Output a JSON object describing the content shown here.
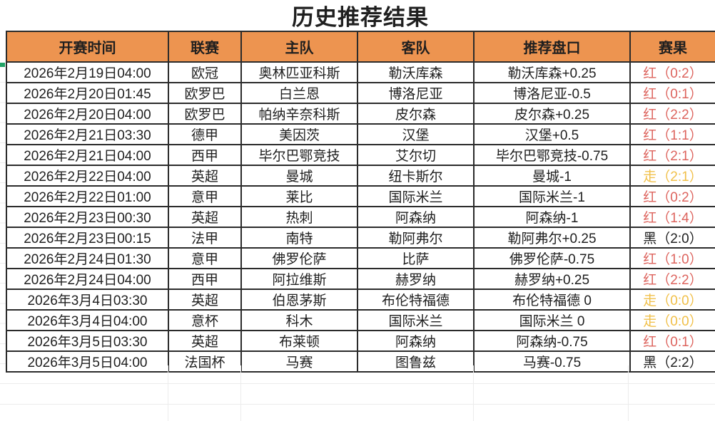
{
  "page": {
    "title": "历史推荐结果"
  },
  "colors": {
    "header_bg": "#ed9450",
    "table_border": "#2b2b2b",
    "result_red": "#dd645e",
    "result_walk": "#f1c04a",
    "result_black": "#212121",
    "selection_green": "#21a366",
    "sheet_gridline": "#ececec"
  },
  "table": {
    "headers": [
      "开赛时间",
      "联赛",
      "主队",
      "客队",
      "推荐盘口",
      "赛果"
    ],
    "rows": [
      {
        "time": "2026年2月19日04:00",
        "league": "欧冠",
        "home": "奥林匹亚科斯",
        "away": "勒沃库森",
        "handicap": "勒沃库森+0.25",
        "result": "红（0:2）",
        "status": "red"
      },
      {
        "time": "2026年2月20日01:45",
        "league": "欧罗巴",
        "home": "白兰恩",
        "away": "博洛尼亚",
        "handicap": "博洛尼亚-0.5",
        "result": "红（0:1）",
        "status": "red"
      },
      {
        "time": "2026年2月20日04:00",
        "league": "欧罗巴",
        "home": "帕纳辛奈科斯",
        "away": "皮尔森",
        "handicap": "皮尔森+0.25",
        "result": "红（2:2）",
        "status": "red"
      },
      {
        "time": "2026年2月21日03:30",
        "league": "德甲",
        "home": "美因茨",
        "away": "汉堡",
        "handicap": "汉堡+0.5",
        "result": "红（1:1）",
        "status": "red"
      },
      {
        "time": "2026年2月21日04:00",
        "league": "西甲",
        "home": "毕尔巴鄂竞技",
        "away": "艾尔切",
        "handicap": "毕尔巴鄂竞技-0.75",
        "result": "红（2:1）",
        "status": "red"
      },
      {
        "time": "2026年2月22日04:00",
        "league": "英超",
        "home": "曼城",
        "away": "纽卡斯尔",
        "handicap": "曼城-1",
        "result": "走（2:1）",
        "status": "walk"
      },
      {
        "time": "2026年2月22日01:00",
        "league": "意甲",
        "home": "莱比",
        "away": "国际米兰",
        "handicap": "国际米兰-1",
        "result": "红（0:2）",
        "status": "red"
      },
      {
        "time": "2026年2月23日00:30",
        "league": "英超",
        "home": "热刺",
        "away": "阿森纳",
        "handicap": "阿森纳-1",
        "result": "红（1:4）",
        "status": "red"
      },
      {
        "time": "2026年2月23日00:15",
        "league": "法甲",
        "home": "南特",
        "away": "勒阿弗尔",
        "handicap": "勒阿弗尔+0.25",
        "result": "黑（2:0）",
        "status": "black"
      },
      {
        "time": "2026年2月24日01:30",
        "league": "意甲",
        "home": "佛罗伦萨",
        "away": "比萨",
        "handicap": "佛罗伦萨-0.75",
        "result": "红（1:0）",
        "status": "red"
      },
      {
        "time": "2026年2月24日04:00",
        "league": "西甲",
        "home": "阿拉维斯",
        "away": "赫罗纳",
        "handicap": "赫罗纳+0.25",
        "result": "红（2:2）",
        "status": "red"
      },
      {
        "time": "2026年3月4日03:30",
        "league": "英超",
        "home": "伯恩茅斯",
        "away": "布伦特福德",
        "handicap": "布伦特福德 0",
        "result": "走（0:0）",
        "status": "walk"
      },
      {
        "time": "2026年3月4日04:00",
        "league": "意杯",
        "home": "科木",
        "away": "国际米兰",
        "handicap": "国际米兰 0",
        "result": "走（0:0）",
        "status": "walk"
      },
      {
        "time": "2026年3月5日03:30",
        "league": "英超",
        "home": "布莱顿",
        "away": "阿森纳",
        "handicap": "阿森纳-0.75",
        "result": "红（0:1）",
        "status": "red"
      },
      {
        "time": "2026年3月5日04:00",
        "league": "法国杯",
        "home": "马赛",
        "away": "图鲁兹",
        "handicap": "马赛-0.75",
        "result": "黑（2:2）",
        "status": "black"
      }
    ]
  }
}
